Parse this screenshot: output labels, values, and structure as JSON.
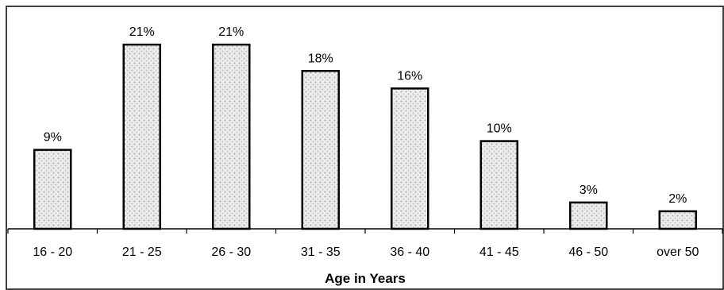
{
  "chart_data": {
    "type": "bar",
    "categories": [
      "16 - 20",
      "21 - 25",
      "26 - 30",
      "31 - 35",
      "36 - 40",
      "41 - 45",
      "46 - 50",
      "over 50"
    ],
    "values": [
      9,
      21,
      21,
      18,
      16,
      10,
      3,
      2
    ],
    "data_labels": [
      "9%",
      "21%",
      "21%",
      "18%",
      "16%",
      "10%",
      "3%",
      "2%"
    ],
    "title": "",
    "xlabel": "Age in Years",
    "ylabel": "",
    "ylim": [
      0,
      25
    ],
    "grid": false,
    "legend": "none",
    "bar_fill": "#d9d9d9",
    "bar_stroke": "#000000"
  }
}
